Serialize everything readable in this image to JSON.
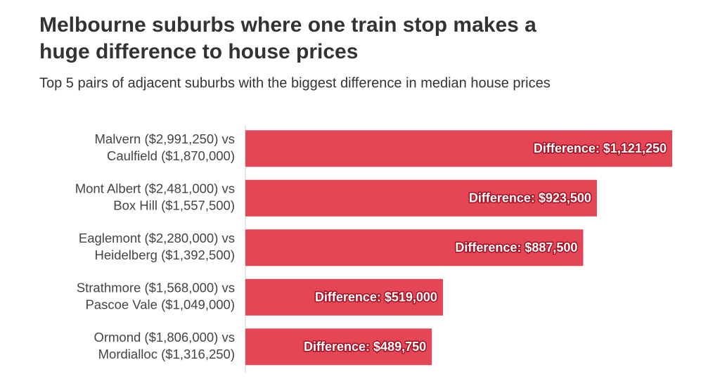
{
  "chart_data": {
    "type": "bar",
    "orientation": "horizontal",
    "title": [
      "Melbourne suburbs where one train stop makes a",
      "huge difference to house prices"
    ],
    "subtitle": "Top 5 pairs of adjacent suburbs with the biggest difference in median house prices",
    "categories": [
      [
        "Malvern ($2,991,250) vs",
        "Caulfield ($1,870,000)"
      ],
      [
        "Mont Albert ($2,481,000) vs",
        "Box Hill ($1,557,500)"
      ],
      [
        "Eaglemont ($2,280,000) vs",
        "Heidelberg ($1,392,500)"
      ],
      [
        "Strathmore ($1,568,000) vs",
        "Pascoe Vale ($1,049,000)"
      ],
      [
        "Ormond ($1,806,000) vs",
        "Mordialloc ($1,316,250)"
      ]
    ],
    "values": [
      1121250,
      923500,
      887500,
      519000,
      489750
    ],
    "value_labels": [
      "Difference: $1,121,250",
      "Difference: $923,500",
      "Difference: $887,500",
      "Difference: $519,000",
      "Difference: $489,750"
    ],
    "color": "#e44655"
  }
}
